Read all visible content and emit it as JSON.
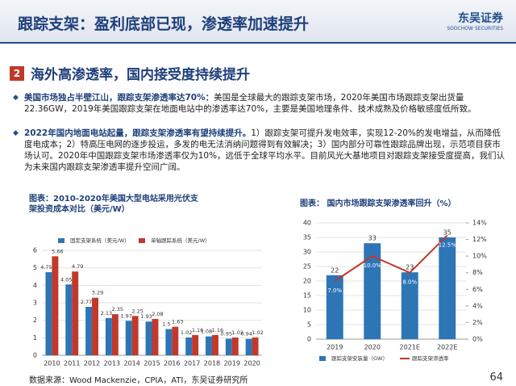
{
  "header": {
    "title": "跟踪支架：盈利底部已现，渗透率加速提升",
    "logo": "东吴证券",
    "logo_en": "SOOCHOW SECURITIES"
  },
  "section": {
    "number": "2",
    "title": "海外高渗透率，国内接受度持续提升"
  },
  "bullets": [
    {
      "bold": "美国市场独占半壁江山，跟踪支架渗透率达70%：",
      "text": "美国是全球最大的跟踪支架市场，2020年美国市场跟踪支架出货量22.36GW，2019年美国跟踪支架在地面电站中的渗透率达70%，主要是美国地理条件、技术成熟及价格敏感度低所致。"
    },
    {
      "bold": "2022年国内地面电站起量，跟踪支架渗透率有望持续提升。",
      "text": "1）跟踪支架可提升发电效率，实现12-20%的发电增益，从而降低度电成本；2）特高压电网的逐步投运，多发的电无法消纳问题得到有效解决；3）国内部分可靠性跟踪品牌出现，示范项目获市场认可。2020年中国跟踪支架市场渗透率仅为10%，远低于全球平均水平。目前风光大基地项目对跟踪支架接受度提高，我们认为未来国内跟踪支架渗透率提升空间广阔。"
    }
  ],
  "chart_data": [
    {
      "type": "bar",
      "title": "图表：2010-2020年美国大型电站采用光伏支架投资成本对比（美元/W）",
      "categories": [
        "2010",
        "2011",
        "2012",
        "2013",
        "2014",
        "2015",
        "2016",
        "2017",
        "2018",
        "2019",
        "2020"
      ],
      "series": [
        {
          "name": "固定支架系统（美元/W）",
          "color": "#2e75b6",
          "values": [
            4.75,
            4.05,
            2.77,
            2.13,
            1.97,
            1.93,
            1.5,
            1.02,
            1.08,
            0.95,
            0.94
          ]
        },
        {
          "name": "单轴跟踪系统（美元/W）",
          "color": "#c0392b",
          "values": [
            5.66,
            4.79,
            3.29,
            2.35,
            2.25,
            2.08,
            1.63,
            1.16,
            1.16,
            1.02,
            1.02
          ]
        }
      ],
      "ylim": [
        0,
        6
      ],
      "yticks": [
        0,
        1,
        2,
        3,
        4,
        5,
        6
      ],
      "legend": "top"
    },
    {
      "type": "combo",
      "title": "图表： 国内市场跟踪支架渗透率回升（%）",
      "categories": [
        "2019",
        "2020",
        "2021E",
        "2022E"
      ],
      "series": [
        {
          "name": "跟踪支架安装量（GW）",
          "color": "#2e75b6",
          "values": [
            22,
            33,
            23,
            35
          ]
        },
        {
          "name": "跟踪支架渗透率",
          "color": "#c0392b",
          "axis": "y2",
          "values": [
            7.0,
            10.0,
            8.0,
            12.5
          ],
          "value_labels": [
            "7.0%",
            "10.0%",
            "8.0%",
            "12.5%"
          ]
        }
      ],
      "ylim": [
        0,
        40
      ],
      "yticks": [
        0,
        5,
        10,
        15,
        20,
        25,
        30,
        35,
        40
      ],
      "y2lim": [
        0,
        14
      ],
      "y2ticks": [
        {
          "value": 0,
          "label": "0%"
        },
        {
          "value": 2,
          "label": "2%"
        },
        {
          "value": 4,
          "label": "4%"
        },
        {
          "value": 6,
          "label": "6%"
        },
        {
          "value": 8,
          "label": "8%"
        },
        {
          "value": 10,
          "label": "10%"
        },
        {
          "value": 12,
          "label": "12%"
        },
        {
          "value": 14,
          "label": "14%"
        }
      ],
      "legend": "bottom"
    }
  ],
  "footer": {
    "source": "数据来源：Wood Mackenzie，CPIA，ATI，东吴证券研究所",
    "page": "64"
  }
}
